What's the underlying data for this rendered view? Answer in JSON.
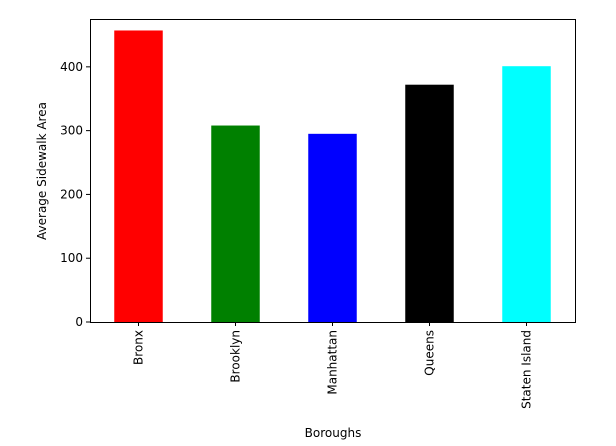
{
  "chart_data": {
    "type": "bar",
    "title": "",
    "xlabel": "Boroughs",
    "ylabel": "Average Sidewalk Area",
    "categories": [
      "Bronx",
      "Brooklyn",
      "Manhattan",
      "Queens",
      "Staten Island"
    ],
    "values": [
      457,
      308,
      295,
      372,
      401
    ],
    "colors": [
      "#ff0000",
      "#008000",
      "#0000ff",
      "#000000",
      "#00ffff"
    ],
    "ylim": [
      0,
      475
    ],
    "yticks": [
      0,
      100,
      200,
      300,
      400
    ],
    "grid": false,
    "legend": "none"
  }
}
